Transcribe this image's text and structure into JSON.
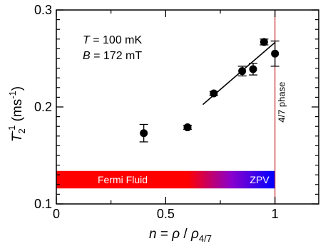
{
  "chart_data": {
    "type": "scatter",
    "xlabel": {
      "prefix": "n",
      "eq": " = ",
      "rho": "ρ",
      "slash": " / ",
      "rho2": "ρ",
      "sub": "4/7"
    },
    "ylabel": {
      "base": "T",
      "sub": "2",
      "sup": "-1",
      "unit": " (ms",
      "unit_sup": "-1",
      "close": ")"
    },
    "xlim": [
      0,
      1.2
    ],
    "ylim": [
      0.1,
      0.3
    ],
    "x_ticks": [
      {
        "value": 0,
        "label": "0"
      },
      {
        "value": 0.5,
        "label": "0.5"
      },
      {
        "value": 1.0,
        "label": "1"
      }
    ],
    "y_ticks": [
      {
        "value": 0.1,
        "label": "0.1"
      },
      {
        "value": 0.2,
        "label": "0.2"
      },
      {
        "value": 0.3,
        "label": "0.3"
      }
    ],
    "points": [
      {
        "x": 0.4,
        "y": 0.173,
        "err": 0.009
      },
      {
        "x": 0.6,
        "y": 0.179,
        "err": 0.002
      },
      {
        "x": 0.72,
        "y": 0.214,
        "err": 0.002
      },
      {
        "x": 0.85,
        "y": 0.237,
        "err": 0.005
      },
      {
        "x": 0.9,
        "y": 0.239,
        "err": 0.006
      },
      {
        "x": 0.95,
        "y": 0.267,
        "err": 0.003
      },
      {
        "x": 1.0,
        "y": 0.255,
        "err": 0.013
      }
    ],
    "fit_line": {
      "x": [
        0.67,
        1.0
      ],
      "y": [
        0.2025,
        0.2665
      ]
    },
    "vline": {
      "x": 1.0,
      "label": "4/7 phase",
      "color": "#cc3333"
    },
    "annotations": [
      {
        "var": "T",
        "text": " = 100 mK"
      },
      {
        "var": "B",
        "text": " = 172 mT"
      }
    ],
    "bands": [
      {
        "label": "Fermi Fluid",
        "x0": 0,
        "x1": 0.6,
        "y0": 0.116,
        "y1": 0.134,
        "color": "#ff0000"
      },
      {
        "label": "ZPV",
        "x0": 0.6,
        "x1": 1.0,
        "y0": 0.116,
        "y1": 0.134,
        "gradient_from": "#ff0000",
        "gradient_mid": "#8a00cc",
        "gradient_to": "#0000ff"
      }
    ],
    "colors": {
      "points": "#000000",
      "fit": "#000000"
    }
  }
}
